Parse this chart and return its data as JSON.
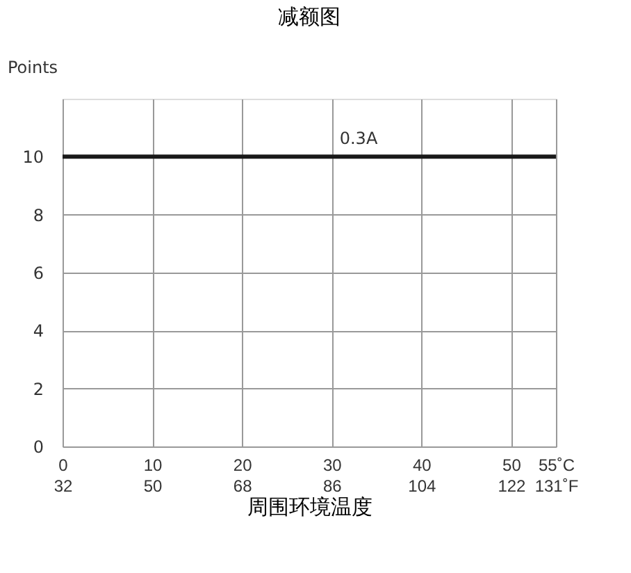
{
  "chart_data": {
    "type": "line",
    "title": "减额图",
    "xlabel": "周围环境温度",
    "ylabel": "Points",
    "series": [
      {
        "name": "0.3A",
        "color": "#1a1a1a",
        "x": [
          0,
          55
        ],
        "values": [
          10,
          10
        ]
      }
    ],
    "xlim": [
      0,
      55
    ],
    "ylim": [
      0,
      12
    ],
    "xticks": [
      0,
      10,
      20,
      30,
      40,
      50,
      {
        "value": 55,
        "label": "55˚C"
      }
    ],
    "x2lim": [
      32,
      131
    ],
    "x2ticks": [
      32,
      50,
      68,
      86,
      104,
      122,
      {
        "value": 131,
        "label": "131˚F"
      }
    ],
    "yticks": [
      0,
      2,
      4,
      6,
      8,
      10
    ],
    "grid": true,
    "marker": "none",
    "line_style": "solid"
  }
}
